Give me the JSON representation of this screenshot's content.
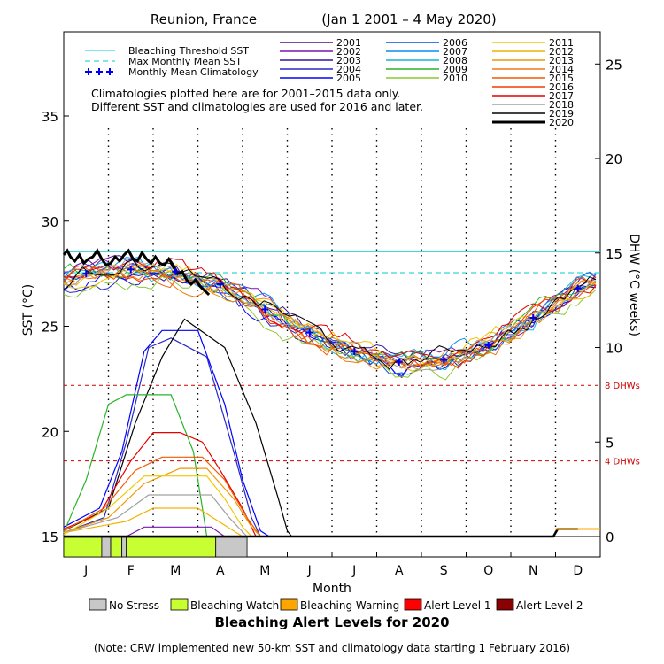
{
  "chart_data": {
    "type": "line",
    "title": "Reunion, France",
    "subtitle": "(Jan 1 2001 – 4 May 2020)",
    "xlabel": "Month",
    "ylabel_left": "SST (°C)",
    "ylabel_right": "DHW (°C weeks)",
    "months": [
      "J",
      "F",
      "M",
      "A",
      "M",
      "J",
      "J",
      "A",
      "S",
      "O",
      "N",
      "D"
    ],
    "ylim_left": [
      15,
      39
    ],
    "yticks_left": [
      15,
      20,
      25,
      30,
      35
    ],
    "ylim_right": [
      0,
      26.7
    ],
    "yticks_right": [
      0,
      5,
      10,
      15,
      20,
      25
    ],
    "bleaching_threshold_sst": 28.55,
    "max_monthly_mean_sst": 27.55,
    "dhw_reference_lines": [
      {
        "label": "4 DHWs",
        "value": 4
      },
      {
        "label": "8 DHWs",
        "value": 8
      }
    ],
    "legend_top_left": [
      {
        "label": "Bleaching Threshold SST",
        "color": "#00cccc",
        "style": "solid"
      },
      {
        "label": "Max Monthly Mean SST",
        "color": "#00cccc",
        "style": "dashed"
      },
      {
        "label": "Monthly Mean Climatology",
        "color": "#0000ee",
        "style": "plus"
      }
    ],
    "note_lines": [
      "Climatologies plotted here are for 2001–2015 data only.",
      "Different SST and climatologies are used for 2016 and later."
    ],
    "years": [
      {
        "name": "2001",
        "color": "#5a0a8c"
      },
      {
        "name": "2002",
        "color": "#7a14b4"
      },
      {
        "name": "2003",
        "color": "#3214a0"
      },
      {
        "name": "2004",
        "color": "#2828c8"
      },
      {
        "name": "2005",
        "color": "#0000ff"
      },
      {
        "name": "2006",
        "color": "#0050dc"
      },
      {
        "name": "2007",
        "color": "#0a8cf0"
      },
      {
        "name": "2008",
        "color": "#14b4dc"
      },
      {
        "name": "2009",
        "color": "#28b428"
      },
      {
        "name": "2010",
        "color": "#8cc832"
      },
      {
        "name": "2011",
        "color": "#f0c800"
      },
      {
        "name": "2012",
        "color": "#f0b400"
      },
      {
        "name": "2013",
        "color": "#f09600"
      },
      {
        "name": "2014",
        "color": "#f07814"
      },
      {
        "name": "2015",
        "color": "#f05a00"
      },
      {
        "name": "2016",
        "color": "#f03c00"
      },
      {
        "name": "2017",
        "color": "#e60000"
      },
      {
        "name": "2018",
        "color": "#a0a0a0"
      },
      {
        "name": "2019",
        "color": "#000000"
      },
      {
        "name": "2020",
        "color": "#000000"
      }
    ],
    "climatology_monthly_mean": [
      27.5,
      27.7,
      27.6,
      27.0,
      25.8,
      24.7,
      23.8,
      23.3,
      23.4,
      24.1,
      25.4,
      26.8
    ],
    "sst_2020": [
      [
        0.0,
        28.4
      ],
      [
        0.08,
        28.6
      ],
      [
        0.15,
        28.3
      ],
      [
        0.25,
        28.1
      ],
      [
        0.35,
        28.4
      ],
      [
        0.45,
        28.0
      ],
      [
        0.55,
        28.2
      ],
      [
        0.65,
        28.3
      ],
      [
        0.75,
        28.6
      ],
      [
        0.85,
        28.2
      ],
      [
        0.95,
        27.9
      ],
      [
        1.05,
        28.0
      ],
      [
        1.15,
        28.3
      ],
      [
        1.25,
        28.1
      ],
      [
        1.35,
        28.4
      ],
      [
        1.45,
        28.6
      ],
      [
        1.55,
        28.2
      ],
      [
        1.65,
        28.1
      ],
      [
        1.75,
        28.5
      ],
      [
        1.85,
        28.2
      ],
      [
        1.95,
        28.0
      ],
      [
        2.05,
        28.3
      ],
      [
        2.15,
        28.0
      ],
      [
        2.25,
        27.9
      ],
      [
        2.35,
        28.2
      ],
      [
        2.45,
        27.9
      ],
      [
        2.55,
        27.5
      ],
      [
        2.65,
        27.6
      ],
      [
        2.75,
        27.2
      ],
      [
        2.85,
        27.0
      ],
      [
        2.95,
        27.2
      ],
      [
        3.05,
        26.9
      ],
      [
        3.15,
        26.7
      ],
      [
        3.25,
        26.5
      ]
    ],
    "dhw_series": [
      {
        "year": "2005",
        "points": [
          [
            0,
            0.5
          ],
          [
            0.8,
            1.5
          ],
          [
            1.3,
            4.5
          ],
          [
            1.8,
            9.8
          ],
          [
            2.2,
            10.9
          ],
          [
            3.0,
            10.9
          ],
          [
            3.6,
            7.0
          ],
          [
            4.0,
            3.0
          ],
          [
            4.4,
            0.3
          ],
          [
            4.6,
            0
          ]
        ]
      },
      {
        "year": "2004",
        "points": [
          [
            0,
            0.2
          ],
          [
            0.9,
            1.0
          ],
          [
            1.4,
            5.0
          ],
          [
            1.9,
            10.0
          ],
          [
            2.4,
            10.5
          ],
          [
            3.2,
            9.5
          ],
          [
            3.8,
            4.5
          ],
          [
            4.2,
            1.0
          ],
          [
            4.4,
            0
          ]
        ]
      },
      {
        "year": "2019",
        "points": [
          [
            0,
            0.3
          ],
          [
            1.0,
            1.5
          ],
          [
            1.6,
            6.0
          ],
          [
            2.2,
            9.5
          ],
          [
            2.7,
            11.5
          ],
          [
            3.6,
            10.0
          ],
          [
            4.3,
            6.0
          ],
          [
            4.8,
            2.0
          ],
          [
            5.0,
            0.3
          ],
          [
            5.1,
            0
          ]
        ]
      },
      {
        "year": "2009",
        "points": [
          [
            0,
            0.2
          ],
          [
            0.5,
            3.0
          ],
          [
            1.0,
            7.0
          ],
          [
            1.4,
            7.5
          ],
          [
            2.4,
            7.5
          ],
          [
            2.9,
            4.5
          ],
          [
            3.1,
            1.5
          ],
          [
            3.2,
            0
          ]
        ]
      },
      {
        "year": "2017",
        "points": [
          [
            0,
            0.4
          ],
          [
            0.8,
            1.2
          ],
          [
            1.5,
            4.0
          ],
          [
            2.0,
            5.5
          ],
          [
            2.6,
            5.5
          ],
          [
            3.1,
            5.0
          ],
          [
            3.5,
            3.5
          ],
          [
            4.0,
            1.5
          ],
          [
            4.3,
            0
          ]
        ]
      },
      {
        "year": "2015",
        "points": [
          [
            0,
            0.3
          ],
          [
            0.9,
            1.5
          ],
          [
            1.6,
            3.5
          ],
          [
            2.2,
            4.2
          ],
          [
            3.1,
            4.2
          ],
          [
            3.6,
            3.0
          ],
          [
            4.1,
            1.0
          ],
          [
            4.4,
            0
          ]
        ]
      },
      {
        "year": "2013",
        "points": [
          [
            0,
            0.2
          ],
          [
            1.0,
            1.0
          ],
          [
            1.8,
            2.8
          ],
          [
            2.6,
            3.6
          ],
          [
            3.2,
            3.6
          ],
          [
            3.8,
            2.0
          ],
          [
            4.2,
            0.5
          ],
          [
            4.4,
            0
          ]
        ]
      },
      {
        "year": "2011",
        "points": [
          [
            0,
            0.1
          ],
          [
            1.0,
            1.5
          ],
          [
            1.8,
            3.2
          ],
          [
            3.2,
            3.2
          ],
          [
            3.6,
            2.0
          ],
          [
            4.0,
            0.5
          ],
          [
            4.2,
            0
          ]
        ]
      },
      {
        "year": "2018",
        "points": [
          [
            0,
            0.2
          ],
          [
            1.2,
            1.0
          ],
          [
            1.9,
            2.2
          ],
          [
            3.3,
            2.2
          ],
          [
            3.7,
            1.0
          ],
          [
            4.1,
            0
          ]
        ]
      },
      {
        "year": "2012",
        "points": [
          [
            0,
            0.2
          ],
          [
            1.4,
            0.8
          ],
          [
            2.0,
            1.5
          ],
          [
            3.0,
            1.5
          ],
          [
            3.6,
            0.6
          ],
          [
            4.0,
            0
          ]
        ]
      },
      {
        "year": "2002",
        "points": [
          [
            1.4,
            0
          ],
          [
            1.8,
            0.5
          ],
          [
            3.3,
            0.5
          ],
          [
            3.6,
            0
          ]
        ]
      },
      {
        "year": "2020",
        "points": [
          [
            0,
            0
          ],
          [
            10.95,
            0
          ],
          [
            11.05,
            0.4
          ],
          [
            11.5,
            0.4
          ]
        ]
      }
    ],
    "alert_legend": [
      {
        "label": "No Stress",
        "color": "#c8c8c8"
      },
      {
        "label": "Bleaching Watch",
        "color": "#c8ff32"
      },
      {
        "label": "Bleaching Warning",
        "color": "#ffa500"
      },
      {
        "label": "Alert Level 1",
        "color": "#ff0000"
      },
      {
        "label": "Alert Level 2",
        "color": "#8b0000"
      }
    ],
    "alert_bar_2020": [
      {
        "from": 0.0,
        "to": 0.85,
        "level": "Bleaching Watch"
      },
      {
        "from": 0.85,
        "to": 1.05,
        "level": "No Stress"
      },
      {
        "from": 1.05,
        "to": 1.3,
        "level": "Bleaching Watch"
      },
      {
        "from": 1.3,
        "to": 1.4,
        "level": "No Stress"
      },
      {
        "from": 1.4,
        "to": 3.4,
        "level": "Bleaching Watch"
      },
      {
        "from": 3.4,
        "to": 4.1,
        "level": "No Stress"
      }
    ],
    "alert_title": "Bleaching Alert Levels for 2020",
    "footnote": "(Note: CRW implemented new 50-km SST and climatology data starting 1 February 2016)"
  }
}
